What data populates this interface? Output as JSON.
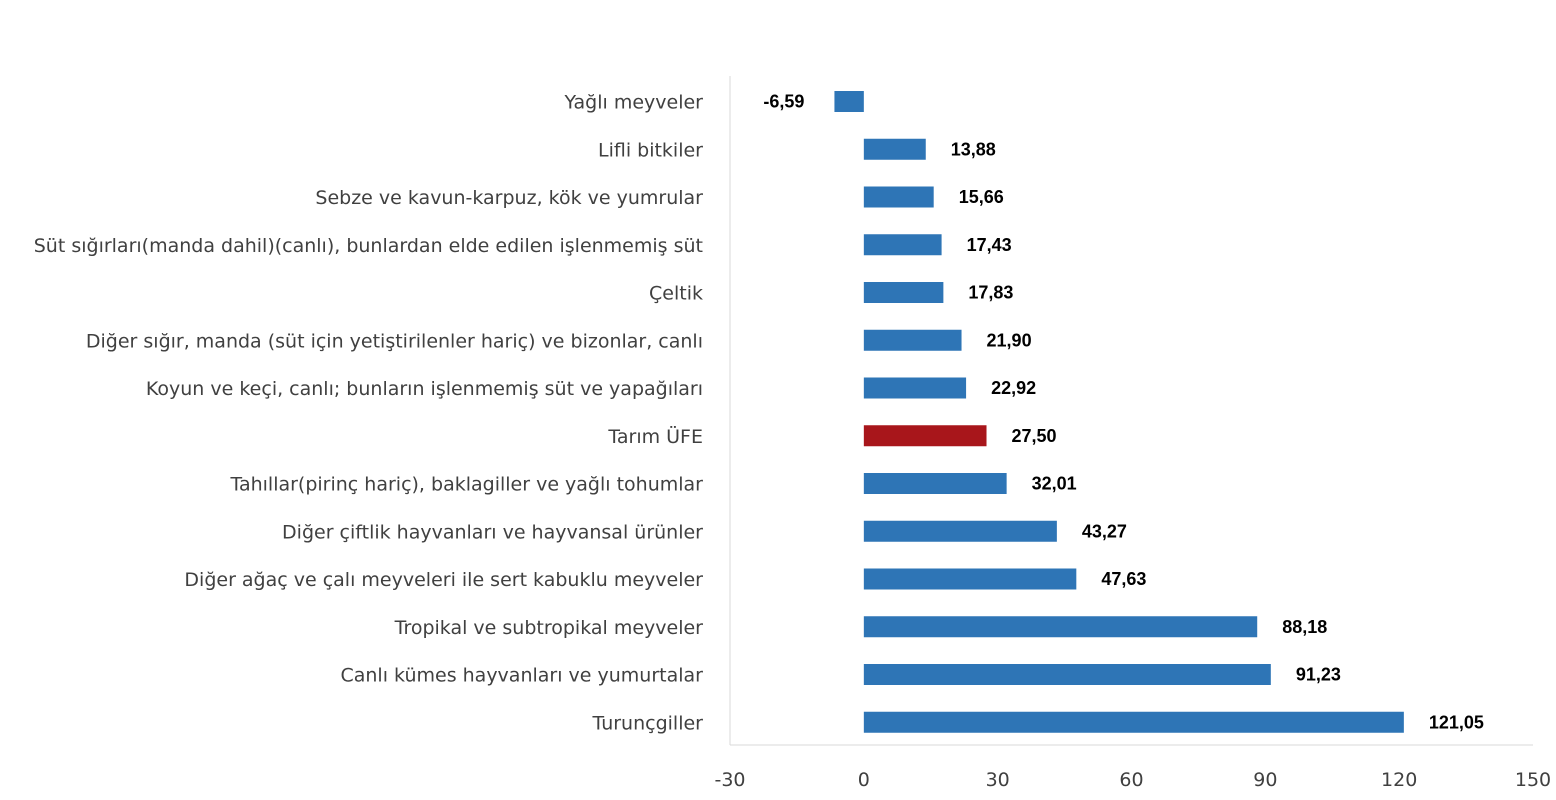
{
  "chart_data": {
    "type": "bar",
    "orientation": "horizontal",
    "title": "",
    "xlabel": "",
    "ylabel": "",
    "xlim": [
      -30,
      150
    ],
    "xticks": [
      -30,
      0,
      30,
      60,
      90,
      120,
      150
    ],
    "grid": false,
    "legend": "none",
    "categories": [
      "Yağlı meyveler",
      "Lifli bitkiler",
      "Sebze ve kavun-karpuz, kök ve yumrular",
      "Süt sığırları(manda dahil)(canlı), bunlardan elde edilen işlenmemiş süt",
      "Çeltik",
      "Diğer sığır, manda (süt için yetiştirilenler hariç) ve bizonlar, canlı",
      "Koyun ve keçi, canlı; bunların işlenmemiş süt ve yapağıları",
      "Tarım ÜFE",
      "Tahıllar(pirinç hariç), baklagiller ve yağlı tohumlar",
      "Diğer çiftlik hayvanları ve hayvansal ürünler",
      "Diğer ağaç ve çalı meyveleri ile sert kabuklu meyveler",
      "Tropikal ve subtropikal meyveler",
      "Canlı kümes hayvanları ve yumurtalar",
      "Turunçgiller"
    ],
    "values": [
      -6.59,
      13.88,
      15.66,
      17.43,
      17.83,
      21.9,
      22.92,
      27.5,
      32.01,
      43.27,
      47.63,
      88.18,
      91.23,
      121.05
    ],
    "value_labels": [
      "-6,59",
      "13,88",
      "15,66",
      "17,43",
      "17,83",
      "21,90",
      "22,92",
      "27,50",
      "32,01",
      "43,27",
      "47,63",
      "88,18",
      "91,23",
      "121,05"
    ],
    "bar_color": "#2e75b6",
    "highlight_color": "#a8161b",
    "highlight_category": "Tarım ÜFE"
  }
}
